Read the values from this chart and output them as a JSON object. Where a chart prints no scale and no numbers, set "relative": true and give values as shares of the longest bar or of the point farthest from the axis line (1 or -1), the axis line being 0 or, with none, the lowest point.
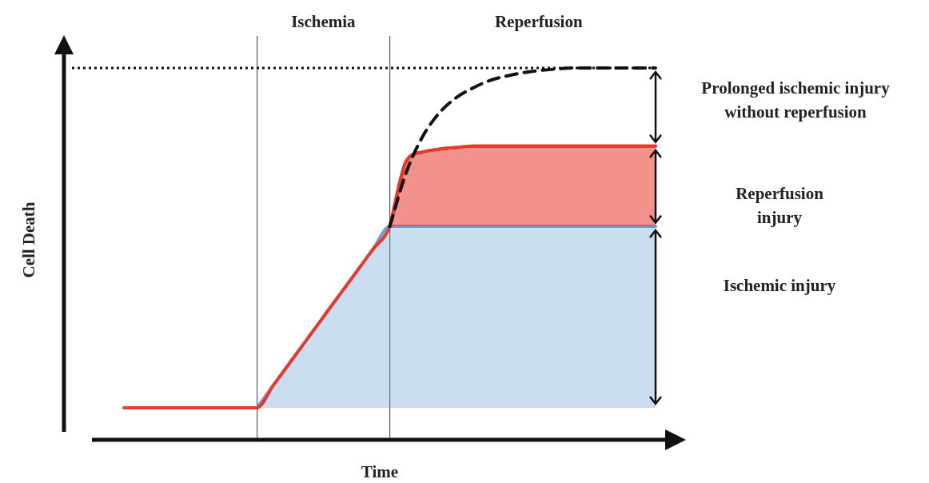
{
  "chart_data": {
    "type": "line",
    "relative": true,
    "xlabel": "Time",
    "ylabel": "Cell Death",
    "legend": false,
    "marker": "none",
    "grid": "x",
    "categories": [
      null,
      null,
      null,
      null,
      null,
      null,
      null,
      null,
      null,
      null,
      null,
      null,
      null,
      null,
      null,
      null,
      null,
      null,
      null,
      null,
      null,
      null,
      null,
      null,
      null,
      null,
      null,
      null,
      null,
      null,
      null,
      null,
      null
    ],
    "series": [
      {
        "type": "area",
        "color": "#6a9fd8",
        "values": [
          null,
          null,
          null,
          null,
          null,
          null,
          null,
          null,
          0.086,
          0.147,
          0.208,
          0.269,
          0.33,
          0.391,
          0.452,
          0.513,
          0.574,
          0.574,
          0.574,
          0.574,
          0.574,
          0.574,
          0.574,
          0.574,
          0.574,
          0.574,
          0.574,
          0.574,
          0.574,
          0.574,
          0.574,
          0.574,
          0.574
        ]
      },
      {
        "type": "area",
        "color": "#e8392b",
        "values": [
          null,
          null,
          null,
          null,
          null,
          null,
          null,
          null,
          null,
          null,
          null,
          null,
          null,
          null,
          null,
          null,
          0.574,
          0.75,
          0.774,
          0.782,
          0.786,
          0.79,
          0.79,
          0.79,
          0.79,
          0.79,
          0.79,
          0.79,
          0.79,
          0.79,
          0.79,
          0.79,
          0.79
        ]
      },
      {
        "type": "line",
        "color": "#e8392b",
        "values": [
          0.086,
          0.086,
          0.086,
          0.086,
          0.086,
          0.086,
          0.086,
          0.086,
          0.086,
          0.147,
          0.208,
          0.269,
          0.33,
          0.391,
          0.452,
          0.513,
          0.574,
          0.75,
          0.774,
          0.782,
          0.786,
          0.79,
          0.79,
          0.79,
          0.79,
          0.79,
          0.79,
          0.79,
          0.79,
          0.79,
          0.79,
          0.79,
          0.79
        ]
      },
      {
        "type": "line",
        "color": "#111111",
        "line_style": "dashed",
        "values": [
          null,
          null,
          null,
          null,
          null,
          null,
          null,
          null,
          null,
          null,
          null,
          null,
          null,
          null,
          null,
          null,
          0.574,
          0.72,
          0.817,
          0.88,
          0.92,
          0.946,
          0.966,
          0.978,
          0.987,
          0.993,
          0.997,
          1,
          1,
          1,
          1,
          1,
          1
        ]
      }
    ],
    "ref_lines": [
      {
        "axis": "y",
        "value": 1,
        "color": "#111111",
        "line_style": "dotted"
      }
    ],
    "annotations": [
      "Ischemia",
      "Reperfusion",
      "Prolonged ischemic injury without reperfusion",
      "Reperfusion injury",
      "Ischemic injury"
    ]
  }
}
